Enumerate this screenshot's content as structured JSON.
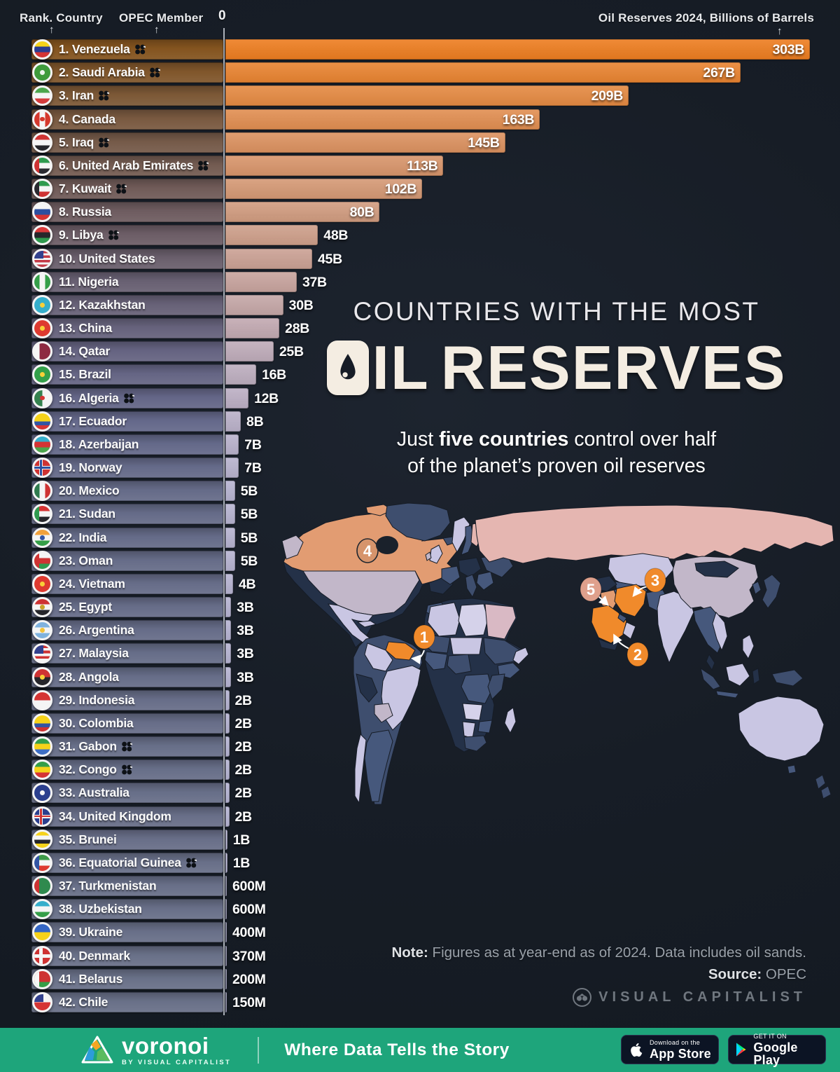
{
  "header": {
    "rank_label": "Rank. Country",
    "opec_label": "OPEC Member",
    "zero": "0",
    "axis_label": "Oil Reserves 2024, Billions of Barrels"
  },
  "title": {
    "kicker": "COUNTRIES WITH THE MOST",
    "main": "OIL RESERVES",
    "sub1_pre": "Just ",
    "sub1_bold": "five countries",
    "sub1_post": " control over half",
    "sub2": "of the planet’s proven oil reserves"
  },
  "chart_data": {
    "type": "bar",
    "title": "Countries with the Most Oil Reserves",
    "subtitle": "Just five countries control over half of the planet’s proven oil reserves",
    "xlabel": "Oil Reserves 2024, Billions of Barrels",
    "origin_tick": "0",
    "unit": "billions of barrels",
    "xlim": [
      0,
      310
    ],
    "categories": [
      "Venezuela",
      "Saudi Arabia",
      "Iran",
      "Canada",
      "Iraq",
      "United Arab Emirates",
      "Kuwait",
      "Russia",
      "Libya",
      "United States",
      "Nigeria",
      "Kazakhstan",
      "China",
      "Qatar",
      "Brazil",
      "Algeria",
      "Ecuador",
      "Azerbaijan",
      "Norway",
      "Mexico",
      "Sudan",
      "India",
      "Oman",
      "Vietnam",
      "Egypt",
      "Argentina",
      "Malaysia",
      "Angola",
      "Indonesia",
      "Colombia",
      "Gabon",
      "Congo",
      "Australia",
      "United Kingdom",
      "Brunei",
      "Equatorial Guinea",
      "Turkmenistan",
      "Uzbekistan",
      "Ukraine",
      "Denmark",
      "Belarus",
      "Chile"
    ],
    "values": [
      303,
      267,
      209,
      163,
      145,
      113,
      102,
      80,
      48,
      45,
      37,
      30,
      28,
      25,
      16,
      12,
      8,
      7,
      7,
      5,
      5,
      5,
      5,
      4,
      3,
      3,
      3,
      3,
      2,
      2,
      2,
      2,
      2,
      2,
      1,
      1,
      0.6,
      0.6,
      0.4,
      0.37,
      0.2,
      0.15
    ],
    "value_labels": [
      "303B",
      "267B",
      "209B",
      "163B",
      "145B",
      "113B",
      "102B",
      "80B",
      "48B",
      "45B",
      "37B",
      "30B",
      "28B",
      "25B",
      "16B",
      "12B",
      "8B",
      "7B",
      "7B",
      "5B",
      "5B",
      "5B",
      "5B",
      "4B",
      "3B",
      "3B",
      "3B",
      "3B",
      "2B",
      "2B",
      "2B",
      "2B",
      "2B",
      "2B",
      "1B",
      "1B",
      "600M",
      "600M",
      "400M",
      "370M",
      "200M",
      "150M"
    ],
    "opec": [
      true,
      true,
      true,
      false,
      true,
      true,
      true,
      false,
      true,
      false,
      false,
      false,
      false,
      false,
      false,
      true,
      false,
      false,
      false,
      false,
      false,
      false,
      false,
      false,
      false,
      false,
      false,
      false,
      false,
      false,
      true,
      true,
      false,
      false,
      false,
      true,
      false,
      false,
      false,
      false,
      false,
      false
    ],
    "note": "Figures as at year-end as of 2024. Data includes oil sands.",
    "source": "OPEC"
  },
  "flags": [
    {
      "t": "h",
      "c": [
        "#F6D21A",
        "#2B3C90",
        "#D53434"
      ]
    },
    {
      "t": "h",
      "c": [
        "#3F9B3B"
      ],
      "e": "#EDF5EC"
    },
    {
      "t": "h",
      "c": [
        "#4CA64C",
        "#F5F5F5",
        "#D43C3C"
      ]
    },
    {
      "t": "v",
      "c": [
        "#D5392D",
        "#F5F5F5",
        "#D5392D"
      ],
      "e": "#D5392D"
    },
    {
      "t": "h",
      "c": [
        "#CE3333",
        "#F5F5F5",
        "#26262B"
      ]
    },
    {
      "t": "h",
      "c": [
        "#2F9A4E",
        "#F5F5F5",
        "#2A2A30"
      ],
      "lb": "#CE3333"
    },
    {
      "t": "h",
      "c": [
        "#2F9A4E",
        "#F5F5F5",
        "#CE3333"
      ],
      "lb": "#2A2A30"
    },
    {
      "t": "h",
      "c": [
        "#F5F5F5",
        "#2C4FA0",
        "#D53434"
      ]
    },
    {
      "t": "h",
      "c": [
        "#D93A3A",
        "#26262B",
        "#2F9A4E"
      ]
    },
    {
      "t": "h",
      "c": [
        "#C43A46",
        "#F5F5F5",
        "#C43A46",
        "#F5F5F5",
        "#C43A46",
        "#F5F5F5",
        "#C43A46"
      ],
      "k": "#33418E"
    },
    {
      "t": "v",
      "c": [
        "#359E48",
        "#F5F5F5",
        "#359E48"
      ]
    },
    {
      "t": "h",
      "c": [
        "#35AECB"
      ],
      "e": "#F8D038"
    },
    {
      "t": "h",
      "c": [
        "#DE3A30"
      ],
      "e": "#F8D038"
    },
    {
      "t": "v",
      "c": [
        "#F5F5F5",
        "#8E2B42",
        "#8E2B42"
      ]
    },
    {
      "t": "h",
      "c": [
        "#33A04A"
      ],
      "e": "#F8D038"
    },
    {
      "t": "v",
      "c": [
        "#35824F",
        "#F5F5F5"
      ],
      "e": "#D53434"
    },
    {
      "t": "h",
      "c": [
        "#F6D21A",
        "#F6D21A",
        "#3355A4",
        "#D53434"
      ]
    },
    {
      "t": "h",
      "c": [
        "#35AECB",
        "#D53434",
        "#4CA64C"
      ]
    },
    {
      "t": "h",
      "c": [
        "#CE3333"
      ],
      "x": [
        "#F5F5F5",
        "#2C4FA0"
      ]
    },
    {
      "t": "v",
      "c": [
        "#2F7A4E",
        "#F5F5F5",
        "#CE3333"
      ]
    },
    {
      "t": "h",
      "c": [
        "#D53434",
        "#F5F5F5",
        "#26262B"
      ],
      "lb": "#2F9A4E"
    },
    {
      "t": "h",
      "c": [
        "#F2A23C",
        "#F5F5F5",
        "#359E48"
      ],
      "e": "#3355A4"
    },
    {
      "t": "h",
      "c": [
        "#F5F5F5",
        "#CE3333",
        "#2F9A4E"
      ],
      "lb": "#CE3333"
    },
    {
      "t": "h",
      "c": [
        "#DE3A30"
      ],
      "e": "#F8D038"
    },
    {
      "t": "h",
      "c": [
        "#CE3333",
        "#F5F5F5",
        "#26262B"
      ],
      "e": "#C9A227"
    },
    {
      "t": "h",
      "c": [
        "#7FB2DE",
        "#F5F5F5",
        "#7FB2DE"
      ],
      "e": "#F2C33C"
    },
    {
      "t": "h",
      "c": [
        "#CE3333",
        "#F5F5F5",
        "#CE3333",
        "#F5F5F5",
        "#CE3333",
        "#F5F5F5"
      ],
      "k": "#33418E"
    },
    {
      "t": "h",
      "c": [
        "#CE3333",
        "#26262B"
      ],
      "e": "#F8D038"
    },
    {
      "t": "h",
      "c": [
        "#D53434",
        "#F5F5F5"
      ]
    },
    {
      "t": "h",
      "c": [
        "#F6D21A",
        "#F6D21A",
        "#3355A4",
        "#CE3333"
      ]
    },
    {
      "t": "h",
      "c": [
        "#359E48",
        "#F6D21A",
        "#3E6FC4"
      ]
    },
    {
      "t": "h",
      "c": [
        "#359E48",
        "#F6D21A",
        "#D53434"
      ]
    },
    {
      "t": "h",
      "c": [
        "#2B3F8E"
      ],
      "e": "#F5F5F5"
    },
    {
      "t": "h",
      "c": [
        "#2B3F8E"
      ],
      "x": [
        "#F5F5F5",
        "#CE3333"
      ]
    },
    {
      "t": "h",
      "c": [
        "#F6D21A",
        "#F5F5F5",
        "#26262B",
        "#F6D21A"
      ]
    },
    {
      "t": "h",
      "c": [
        "#3E9A48",
        "#F5F5F5",
        "#DE3A30"
      ],
      "lb": "#3355A4"
    },
    {
      "t": "h",
      "c": [
        "#2F8A4E"
      ],
      "lb": "#CE3333"
    },
    {
      "t": "h",
      "c": [
        "#35AECB",
        "#F5F5F5",
        "#359E48"
      ]
    },
    {
      "t": "h",
      "c": [
        "#3566C4",
        "#F6D21A"
      ]
    },
    {
      "t": "h",
      "c": [
        "#CE3333"
      ],
      "x": [
        "#F5F5F5"
      ]
    },
    {
      "t": "h",
      "c": [
        "#CE3333",
        "#CE3333",
        "#359E48"
      ],
      "lb": "#F5F5F5"
    },
    {
      "t": "h",
      "c": [
        "#F5F5F5",
        "#D53434"
      ],
      "k": "#33418E"
    }
  ],
  "map": {
    "colors": {
      "deep": "#243148",
      "slate": "#3E4E6E",
      "med": "#46587C",
      "lav": "#C9C6E3",
      "pale": "#D5D2EA",
      "mauve": "#C2B7C9",
      "pink": "#E5B6B1",
      "salmon": "#E29C72",
      "orange": "#F08A2B",
      "egypt": "#D9B9C4"
    },
    "markers": [
      {
        "n": "1",
        "fill": "#F08A2B"
      },
      {
        "n": "2",
        "fill": "#F08A2B"
      },
      {
        "n": "3",
        "fill": "#F08A2B"
      },
      {
        "n": "4",
        "fill": "none"
      },
      {
        "n": "5",
        "fill": "#DFA08C"
      }
    ]
  },
  "note": {
    "label": "Note:",
    "text": " Figures as at year-end as of 2024. Data includes oil sands.",
    "source_label": "Source:",
    "source_text": " OPEC"
  },
  "brand": "VISUAL CAPITALIST",
  "footer": {
    "logo_word": "voronoi",
    "logo_sub": "BY VISUAL CAPITALIST",
    "tagline": "Where Data Tells the Story",
    "app_store_top": "Download on the",
    "app_store_bottom": "App Store",
    "google_play_top": "GET IT ON",
    "google_play_bottom": "Google Play"
  }
}
